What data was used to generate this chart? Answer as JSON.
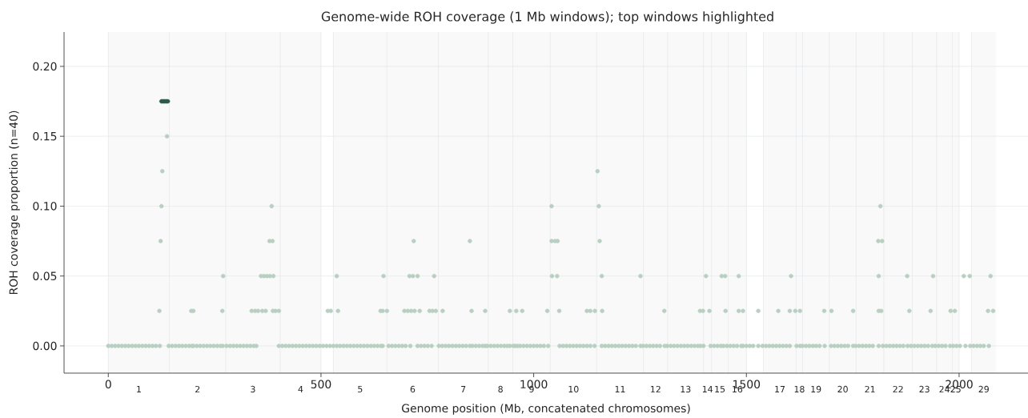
{
  "chart_data": {
    "type": "scatter",
    "title": "Genome-wide ROH coverage (1 Mb windows); top windows highlighted",
    "xlabel": "Genome position (Mb, concatenated chromosomes)",
    "ylabel": "ROH coverage proportion (n=40)",
    "xlim": [
      -104,
      2162
    ],
    "ylim": [
      -0.0195,
      0.2246
    ],
    "xticks": [
      0,
      500,
      1000,
      1500,
      2000
    ],
    "bands": [
      {
        "axis": "x",
        "from": 0,
        "to": 143.5,
        "label": "1",
        "color": "#f8f9f8"
      },
      {
        "axis": "x",
        "from": 143.5,
        "to": 276,
        "label": "2",
        "color": "#f8f9f8"
      },
      {
        "axis": "x",
        "from": 276,
        "to": 404,
        "label": "3",
        "color": "#f8f9f8"
      },
      {
        "axis": "x",
        "from": 404,
        "to": 500,
        "label": "4",
        "color": "#f8f9f8"
      },
      {
        "axis": "x",
        "from": 529,
        "to": 655,
        "label": "5",
        "color": "#f8f9f8"
      },
      {
        "axis": "x",
        "from": 655,
        "to": 776,
        "label": "6",
        "color": "#f8f9f8"
      },
      {
        "axis": "x",
        "from": 776,
        "to": 893,
        "label": "7",
        "color": "#f8f9f8"
      },
      {
        "axis": "x",
        "from": 893,
        "to": 951,
        "label": "8",
        "color": "#f8f9f8"
      },
      {
        "axis": "x",
        "from": 951,
        "to": 1039,
        "label": "9",
        "color": "#f8f9f8"
      },
      {
        "axis": "x",
        "from": 1039,
        "to": 1148,
        "label": "10",
        "color": "#f8f9f8"
      },
      {
        "axis": "x",
        "from": 1148,
        "to": 1258,
        "label": "11",
        "color": "#f8f9f8"
      },
      {
        "axis": "x",
        "from": 1258,
        "to": 1315,
        "label": "12",
        "color": "#f8f9f8"
      },
      {
        "axis": "x",
        "from": 1315,
        "to": 1399,
        "label": "13",
        "color": "#f8f9f8"
      },
      {
        "axis": "x",
        "from": 1399,
        "to": 1418,
        "label": "14",
        "color": "#f8f9f8"
      },
      {
        "axis": "x",
        "from": 1418,
        "to": 1457,
        "label": "15",
        "color": "#f8f9f8"
      },
      {
        "axis": "x",
        "from": 1457,
        "to": 1500,
        "label": "16",
        "color": "#f8f9f8"
      },
      {
        "axis": "x",
        "from": 1540,
        "to": 1617,
        "label": "17",
        "color": "#f8f9f8"
      },
      {
        "axis": "x",
        "from": 1617,
        "to": 1632,
        "label": "18",
        "color": "#f8f9f8"
      },
      {
        "axis": "x",
        "from": 1632,
        "to": 1695,
        "label": "19",
        "color": "#f8f9f8"
      },
      {
        "axis": "x",
        "from": 1695,
        "to": 1758,
        "label": "20",
        "color": "#f8f9f8"
      },
      {
        "axis": "x",
        "from": 1758,
        "to": 1823,
        "label": "21",
        "color": "#f8f9f8"
      },
      {
        "axis": "x",
        "from": 1823,
        "to": 1890,
        "label": "22",
        "color": "#f8f9f8"
      },
      {
        "axis": "x",
        "from": 1890,
        "to": 1947,
        "label": "23",
        "color": "#f8f9f8"
      },
      {
        "axis": "x",
        "from": 1947,
        "to": 1984,
        "label": "24",
        "color": "#f8f9f8"
      },
      {
        "axis": "x",
        "from": 1984,
        "to": 2000,
        "label": "25",
        "color": "#f8f9f8"
      },
      {
        "axis": "x",
        "from": 2029,
        "to": 2087,
        "label": "29",
        "color": "#f8f9f8"
      }
    ],
    "yticks": [
      {
        "value": 0,
        "label": "0.00"
      },
      {
        "value": 0.05,
        "label": "0.05"
      },
      {
        "value": 0.1,
        "label": "0.10"
      },
      {
        "value": 0.15,
        "label": "0.15"
      },
      {
        "value": 0.2,
        "label": "0.20"
      }
    ],
    "grid": "y",
    "marker": "circle",
    "ref_lines": [
      {
        "axis": "x",
        "value": 0,
        "color": "#e6e9eb"
      },
      {
        "axis": "x",
        "value": 143.5,
        "color": "#e6e9eb"
      },
      {
        "axis": "x",
        "value": 276,
        "color": "#e6e9eb"
      },
      {
        "axis": "x",
        "value": 404,
        "color": "#e6e9eb"
      },
      {
        "axis": "x",
        "value": 500,
        "color": "#e6e9eb"
      },
      {
        "axis": "x",
        "value": 529,
        "color": "#e6e9eb"
      },
      {
        "axis": "x",
        "value": 655,
        "color": "#e6e9eb"
      },
      {
        "axis": "x",
        "value": 776,
        "color": "#e6e9eb"
      },
      {
        "axis": "x",
        "value": 893,
        "color": "#e6e9eb"
      },
      {
        "axis": "x",
        "value": 951,
        "color": "#e6e9eb"
      },
      {
        "axis": "x",
        "value": 1039,
        "color": "#e6e9eb"
      },
      {
        "axis": "x",
        "value": 1148,
        "color": "#e6e9eb"
      },
      {
        "axis": "x",
        "value": 1258,
        "color": "#e6e9eb"
      },
      {
        "axis": "x",
        "value": 1315,
        "color": "#e6e9eb"
      },
      {
        "axis": "x",
        "value": 1399,
        "color": "#e6e9eb"
      },
      {
        "axis": "x",
        "value": 1418,
        "color": "#e6e9eb"
      },
      {
        "axis": "x",
        "value": 1457,
        "color": "#e6e9eb"
      },
      {
        "axis": "x",
        "value": 1500,
        "color": "#e6e9eb"
      },
      {
        "axis": "x",
        "value": 1540,
        "color": "#e6e9eb"
      },
      {
        "axis": "x",
        "value": 1617,
        "color": "#e6e9eb"
      },
      {
        "axis": "x",
        "value": 1632,
        "color": "#e6e9eb"
      },
      {
        "axis": "x",
        "value": 1695,
        "color": "#e6e9eb"
      },
      {
        "axis": "x",
        "value": 1758,
        "color": "#e6e9eb"
      },
      {
        "axis": "x",
        "value": 1823,
        "color": "#e6e9eb"
      },
      {
        "axis": "x",
        "value": 1890,
        "color": "#e6e9eb"
      },
      {
        "axis": "x",
        "value": 1947,
        "color": "#e6e9eb"
      },
      {
        "axis": "x",
        "value": 1984,
        "color": "#e6e9eb"
      },
      {
        "axis": "x",
        "value": 2000,
        "color": "#e6e9eb"
      },
      {
        "axis": "x",
        "value": 2029,
        "color": "#e6e9eb"
      }
    ],
    "series": [
      {
        "color": "#b9cfc2",
        "x": [
          0,
          8,
          16,
          24,
          32,
          40,
          48,
          56,
          64,
          72,
          80,
          88,
          96,
          104,
          112,
          121,
          142,
          150,
          158,
          166,
          174,
          182,
          190,
          197,
          200,
          208,
          216,
          224,
          232,
          240,
          248,
          256,
          264,
          269,
          278,
          286,
          294,
          302,
          310,
          318,
          326,
          334,
          342,
          348,
          401,
          409,
          417,
          425,
          433,
          441,
          449,
          457,
          465,
          473,
          481,
          489,
          497,
          505,
          513,
          521,
          529,
          537,
          545,
          553,
          561,
          569,
          577,
          585,
          593,
          601,
          609,
          617,
          625,
          633,
          641,
          645,
          659,
          667,
          675,
          683,
          691,
          699,
          710,
          727,
          735,
          743,
          751,
          760,
          777,
          785,
          793,
          801,
          809,
          817,
          825,
          833,
          841,
          850,
          856,
          864,
          872,
          880,
          886,
          891,
          899,
          907,
          915,
          923,
          931,
          938,
          944,
          952,
          957,
          962,
          968,
          976,
          984,
          992,
          1000,
          1008,
          1016,
          1024,
          1034,
          1061,
          1069,
          1077,
          1085,
          1093,
          1101,
          1109,
          1117,
          1125,
          1133,
          1143,
          1160,
          1168,
          1176,
          1184,
          1192,
          1200,
          1208,
          1216,
          1224,
          1232,
          1240,
          1251,
          1257,
          1265,
          1273,
          1281,
          1289,
          1297,
          1308,
          1314,
          1322,
          1330,
          1338,
          1346,
          1354,
          1362,
          1370,
          1378,
          1386,
          1392,
          1399,
          1416,
          1424,
          1432,
          1440,
          1446,
          1454,
          1462,
          1470,
          1478,
          1488,
          1492,
          1500,
          1508,
          1516,
          1528,
          1538,
          1546,
          1554,
          1562,
          1570,
          1578,
          1586,
          1594,
          1602,
          1618,
          1626,
          1632,
          1640,
          1648,
          1656,
          1664,
          1672,
          1684,
          1699,
          1707,
          1715,
          1723,
          1731,
          1739,
          1751,
          1757,
          1765,
          1773,
          1781,
          1789,
          1797,
          1811,
          1821,
          1829,
          1837,
          1845,
          1853,
          1861,
          1869,
          1879,
          1887,
          1895,
          1903,
          1911,
          1919,
          1927,
          1937,
          1944,
          1952,
          1960,
          1968,
          1979,
          1986,
          1994,
          2002,
          2015,
          2026,
          2034,
          2042,
          2050,
          2058,
          2070
        ],
        "values": [
          0,
          0,
          0,
          0,
          0,
          0,
          0,
          0,
          0,
          0,
          0,
          0,
          0,
          0,
          0,
          0,
          0,
          0,
          0,
          0,
          0,
          0,
          0,
          0,
          0,
          0,
          0,
          0,
          0,
          0,
          0,
          0,
          0,
          0,
          0,
          0,
          0,
          0,
          0,
          0,
          0,
          0,
          0,
          0,
          0,
          0,
          0,
          0,
          0,
          0,
          0,
          0,
          0,
          0,
          0,
          0,
          0,
          0,
          0,
          0,
          0,
          0,
          0,
          0,
          0,
          0,
          0,
          0,
          0,
          0,
          0,
          0,
          0,
          0,
          0,
          0,
          0,
          0,
          0,
          0,
          0,
          0,
          0,
          0,
          0,
          0,
          0,
          0,
          0,
          0,
          0,
          0,
          0,
          0,
          0,
          0,
          0,
          0,
          0,
          0,
          0,
          0,
          0,
          0,
          0,
          0,
          0,
          0,
          0,
          0,
          0,
          0,
          0,
          0,
          0,
          0,
          0,
          0,
          0,
          0,
          0,
          0,
          0,
          0,
          0,
          0,
          0,
          0,
          0,
          0,
          0,
          0,
          0,
          0,
          0,
          0,
          0,
          0,
          0,
          0,
          0,
          0,
          0,
          0,
          0,
          0,
          0,
          0,
          0,
          0,
          0,
          0,
          0,
          0,
          0,
          0,
          0,
          0,
          0,
          0,
          0,
          0,
          0,
          0,
          0,
          0,
          0,
          0,
          0,
          0,
          0,
          0,
          0,
          0,
          0,
          0,
          0,
          0,
          0,
          0,
          0,
          0,
          0,
          0,
          0,
          0,
          0,
          0,
          0,
          0,
          0,
          0,
          0,
          0,
          0,
          0,
          0,
          0,
          0,
          0,
          0,
          0,
          0,
          0,
          0,
          0,
          0,
          0,
          0,
          0,
          0,
          0,
          0,
          0,
          0,
          0,
          0,
          0,
          0,
          0,
          0,
          0,
          0,
          0,
          0,
          0,
          0,
          0,
          0,
          0,
          0,
          0,
          0,
          0,
          0,
          0,
          0,
          0,
          0,
          0,
          0,
          0
        ]
      },
      {
        "color": "#b9cfc2",
        "x": [
          120,
          123,
          125,
          127,
          138,
          195,
          200,
          268,
          270,
          337,
          345,
          352,
          362,
          359,
          366,
          373,
          380,
          388,
          370,
          379,
          386,
          384,
          387,
          393,
          401,
          516,
          523,
          537,
          540,
          640,
          645,
          647,
          655,
          696,
          704,
          708,
          712,
          716,
          718,
          720,
          727,
          732,
          755,
          762,
          766,
          770,
          786,
          850,
          854,
          886,
          944,
          959,
          973,
          1032,
          1042,
          1042,
          1050,
          1056,
          1043,
          1055,
          1060,
          1125,
          1133,
          1144,
          1150,
          1153,
          1155,
          1160,
          1161,
          1251,
          1307,
          1391,
          1398,
          1413,
          1405,
          1442,
          1450,
          1451,
          1482,
          1482,
          1492,
          1528,
          1575,
          1602,
          1605,
          1615,
          1626,
          1683,
          1700,
          1751,
          1810,
          1819,
          1815,
          1811,
          1811,
          1817,
          1878,
          1883,
          1933,
          1939,
          1980,
          1990,
          2011,
          2025,
          2068,
          2074,
          2080
        ],
        "values": [
          0.025,
          0.075,
          0.1,
          0.125,
          0.15,
          0.025,
          0.025,
          0.025,
          0.05,
          0.025,
          0.025,
          0.025,
          0.025,
          0.05,
          0.05,
          0.05,
          0.05,
          0.05,
          0.025,
          0.075,
          0.075,
          0.1,
          0.025,
          0.025,
          0.025,
          0.025,
          0.025,
          0.05,
          0.025,
          0.025,
          0.025,
          0.05,
          0.025,
          0.025,
          0.025,
          0.05,
          0.025,
          0.05,
          0.075,
          0.025,
          0.05,
          0.025,
          0.025,
          0.025,
          0.05,
          0.025,
          0.025,
          0.075,
          0.025,
          0.025,
          0.025,
          0.025,
          0.025,
          0.025,
          0.1,
          0.075,
          0.075,
          0.075,
          0.05,
          0.05,
          0.025,
          0.025,
          0.025,
          0.025,
          0.125,
          0.1,
          0.075,
          0.05,
          0.025,
          0.05,
          0.025,
          0.025,
          0.025,
          0.025,
          0.05,
          0.05,
          0.05,
          0.025,
          0.05,
          0.025,
          0.025,
          0.025,
          0.025,
          0.025,
          0.05,
          0.025,
          0.025,
          0.025,
          0.025,
          0.025,
          0.075,
          0.075,
          0.1,
          0.05,
          0.025,
          0.025,
          0.05,
          0.025,
          0.025,
          0.05,
          0.025,
          0.025,
          0.05,
          0.05,
          0.025,
          0.05,
          0.025
        ]
      },
      {
        "color": "#2f5a4b",
        "x": [
          125,
          128,
          131,
          134,
          137,
          140
        ],
        "values": [
          0.175,
          0.175,
          0.175,
          0.175,
          0.175,
          0.175
        ]
      }
    ]
  }
}
